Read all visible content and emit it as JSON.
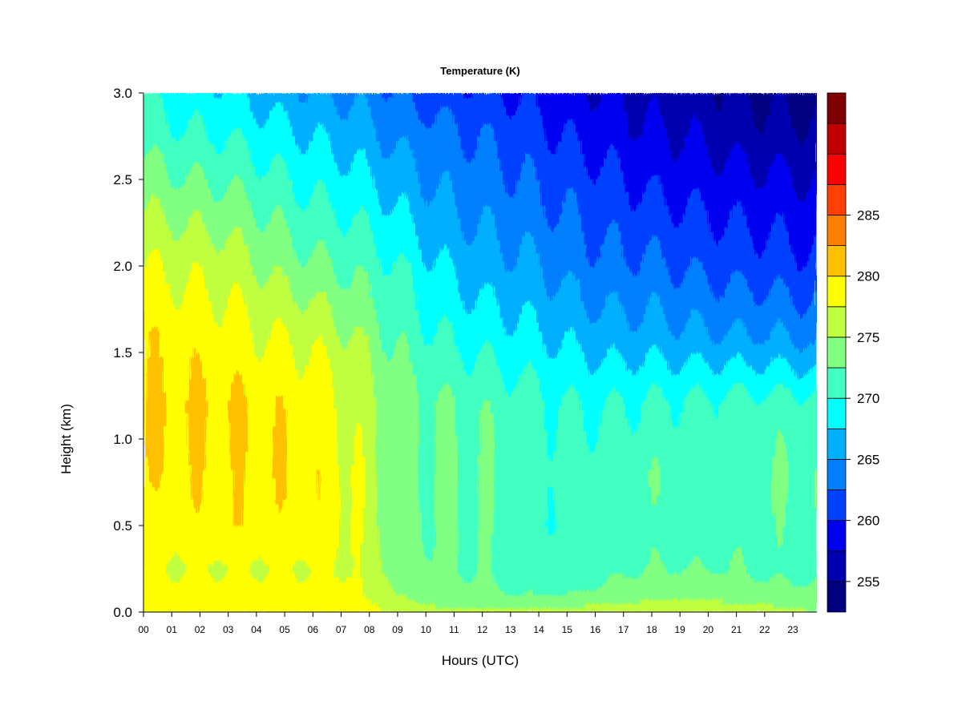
{
  "chart_data": {
    "type": "heatmap",
    "title": "Temperature (K)",
    "xlabel": "Hours (UTC)",
    "ylabel": "Height (km)",
    "x_ticks": [
      "00",
      "01",
      "02",
      "03",
      "04",
      "05",
      "06",
      "07",
      "08",
      "09",
      "10",
      "11",
      "12",
      "13",
      "14",
      "15",
      "16",
      "17",
      "18",
      "19",
      "20",
      "21",
      "22",
      "23"
    ],
    "y_ticks": [
      "0.0",
      "0.5",
      "1.0",
      "1.5",
      "2.0",
      "2.5",
      "3.0"
    ],
    "xlim": [
      0,
      23.85
    ],
    "ylim": [
      0,
      3.0
    ],
    "colorbar": {
      "ticks": [
        "255",
        "260",
        "265",
        "270",
        "275",
        "280",
        "285"
      ],
      "levels": [
        252.5,
        285.0
      ],
      "bin_width": 2.5,
      "colors": [
        "#000080",
        "#0000B0",
        "#0000F0",
        "#0040FF",
        "#0080FF",
        "#00B0FF",
        "#00FFFF",
        "#40FFC0",
        "#80FF80",
        "#C0FF40",
        "#FFFF00",
        "#FFC000",
        "#FF8000",
        "#FF4000",
        "#FF0000",
        "#C00000",
        "#800000"
      ]
    },
    "grid": false,
    "temperature_field_K": {
      "hours": [
        0,
        1.5,
        3,
        4.5,
        6,
        7.5,
        9,
        10.5,
        12,
        13.5,
        15,
        16.5,
        18,
        19.5,
        21,
        22.5,
        23.85
      ],
      "heights_km": [
        0,
        0.1,
        0.25,
        0.5,
        0.8,
        1.2,
        1.6,
        2.0,
        2.4,
        2.8,
        3.0
      ],
      "values": [
        [
          279.5,
          279.5,
          279.5,
          279.5,
          279.5,
          279.0,
          277.0,
          276.0,
          276.0,
          276.0,
          276.0,
          277.0,
          277.5,
          278.0,
          277.0,
          276.0,
          275.0
        ],
        [
          278.0,
          278.0,
          278.0,
          278.0,
          278.0,
          278.0,
          275.0,
          273.0,
          273.0,
          272.5,
          272.5,
          273.0,
          274.0,
          274.0,
          273.5,
          273.0,
          273.0
        ],
        [
          277.5,
          277.5,
          277.5,
          277.5,
          277.5,
          277.5,
          274.0,
          272.5,
          272.5,
          271.0,
          271.0,
          272.0,
          272.5,
          272.5,
          272.5,
          272.0,
          272.0
        ],
        [
          278.0,
          279.0,
          279.5,
          279.0,
          279.5,
          277.5,
          273.5,
          272.5,
          272.5,
          270.5,
          270.5,
          271.0,
          271.5,
          271.0,
          271.5,
          272.0,
          272.0
        ],
        [
          279.5,
          279.5,
          279.5,
          279.5,
          279.5,
          277.5,
          273.5,
          272.5,
          272.5,
          271.0,
          271.0,
          271.5,
          272.0,
          271.5,
          271.5,
          272.5,
          272.0
        ],
        [
          280.0,
          280.0,
          280.0,
          279.5,
          279.0,
          277.0,
          273.5,
          272.5,
          272.0,
          271.0,
          270.0,
          270.0,
          270.5,
          270.5,
          271.0,
          271.0,
          271.0
        ],
        [
          279.5,
          279.0,
          278.5,
          277.5,
          277.0,
          275.0,
          272.0,
          270.0,
          269.0,
          268.0,
          267.0,
          266.0,
          266.0,
          265.5,
          265.0,
          265.0,
          264.0
        ],
        [
          277.5,
          277.0,
          276.5,
          274.5,
          273.0,
          272.0,
          270.0,
          267.5,
          266.0,
          265.5,
          264.0,
          263.0,
          263.0,
          262.0,
          261.5,
          261.0,
          260.5
        ],
        [
          274.5,
          273.5,
          273.0,
          271.5,
          270.0,
          269.0,
          267.0,
          265.0,
          264.0,
          263.0,
          262.0,
          261.0,
          260.0,
          259.5,
          259.0,
          258.5,
          258.0
        ],
        [
          271.0,
          270.0,
          269.5,
          268.0,
          267.0,
          266.0,
          264.0,
          263.0,
          262.0,
          261.0,
          259.5,
          258.5,
          257.5,
          257.0,
          256.0,
          255.5,
          255.0
        ],
        [
          270.0,
          268.5,
          268.0,
          266.5,
          265.0,
          264.5,
          262.5,
          261.0,
          260.5,
          259.5,
          258.5,
          257.5,
          256.5,
          256.0,
          255.0,
          254.5,
          254.0
        ]
      ]
    }
  }
}
